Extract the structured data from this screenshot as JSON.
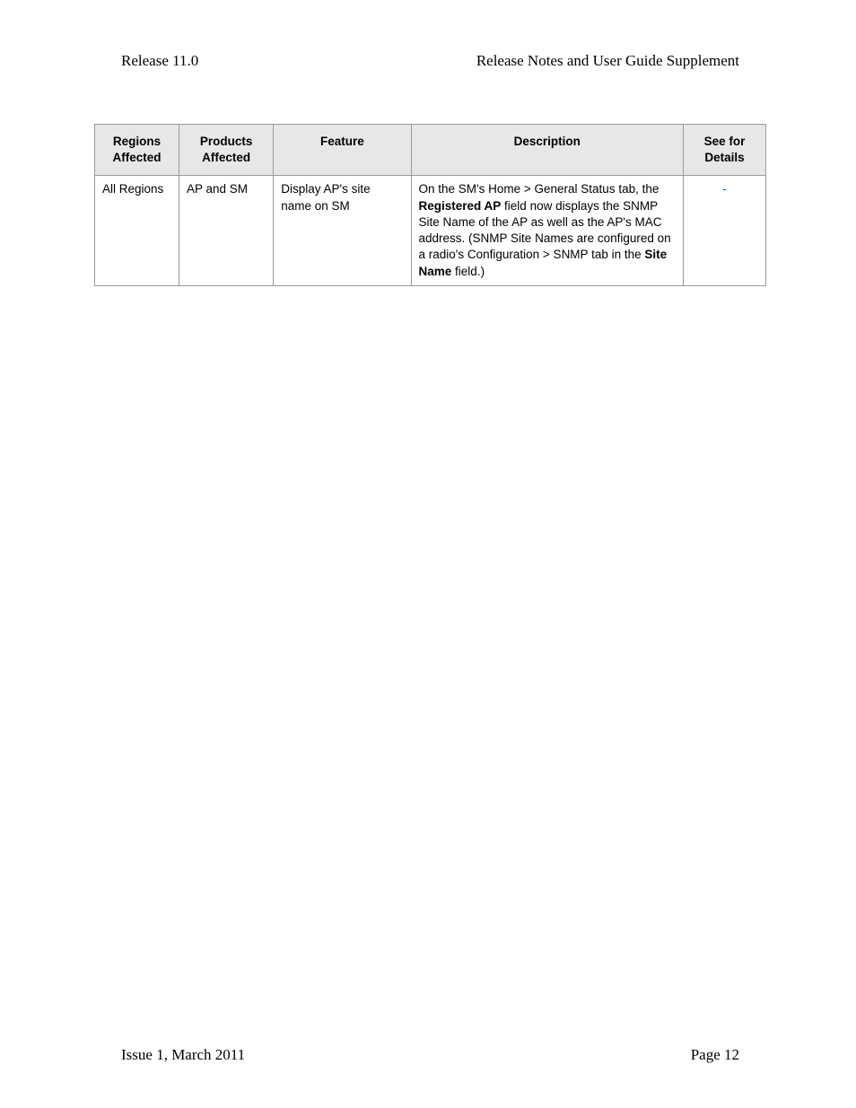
{
  "header": {
    "left": "Release 11.0",
    "right": "Release Notes and User Guide Supplement"
  },
  "table": {
    "columns": [
      "Regions Affected",
      "Products Affected",
      "Feature",
      "Description",
      "See for Details"
    ],
    "rows": [
      {
        "regions": "All Regions",
        "products": "AP and SM",
        "feature": "Display AP's site name on SM",
        "description": {
          "pre1": "On the SM's Home > General Status tab, the ",
          "bold1": "Registered AP",
          "mid1": " field now displays the SNMP Site Name of the AP as well as the AP's MAC address. (SNMP Site Names are configured on a radio's Configuration > SNMP tab in the ",
          "bold2": "Site Name",
          "post1": " field.)"
        },
        "details": "-"
      }
    ]
  },
  "footer": {
    "left": "Issue 1, March 2011",
    "right": "Page 12"
  }
}
